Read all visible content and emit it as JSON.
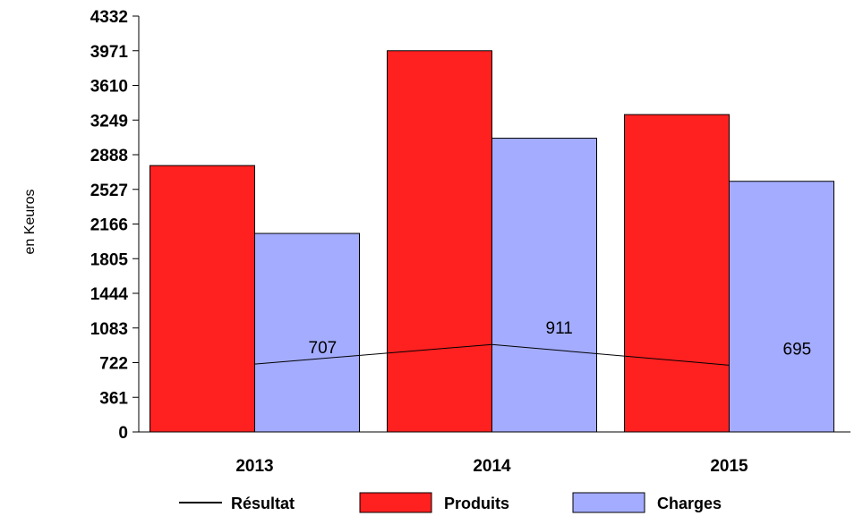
{
  "chart_data": {
    "type": "bar",
    "ylabel": "en Keuros",
    "xlabel": "",
    "categories": [
      "2013",
      "2014",
      "2015"
    ],
    "y_ticks": [
      0,
      361,
      722,
      1083,
      1444,
      1805,
      2166,
      2527,
      2888,
      3249,
      3610,
      3971,
      4332
    ],
    "ylim": [
      0,
      4332
    ],
    "grid": false,
    "legend_position": "bottom",
    "series": [
      {
        "name": "Produits",
        "kind": "bar",
        "color": "#ff2020",
        "values": [
          2775,
          3971,
          3306
        ]
      },
      {
        "name": "Charges",
        "kind": "bar",
        "color": "#a4acff",
        "values": [
          2068,
          3060,
          2611
        ]
      },
      {
        "name": "Résultat",
        "kind": "line",
        "color": "#000000",
        "values": [
          707,
          911,
          695
        ],
        "labels": [
          "707",
          "911",
          "695"
        ]
      }
    ]
  }
}
